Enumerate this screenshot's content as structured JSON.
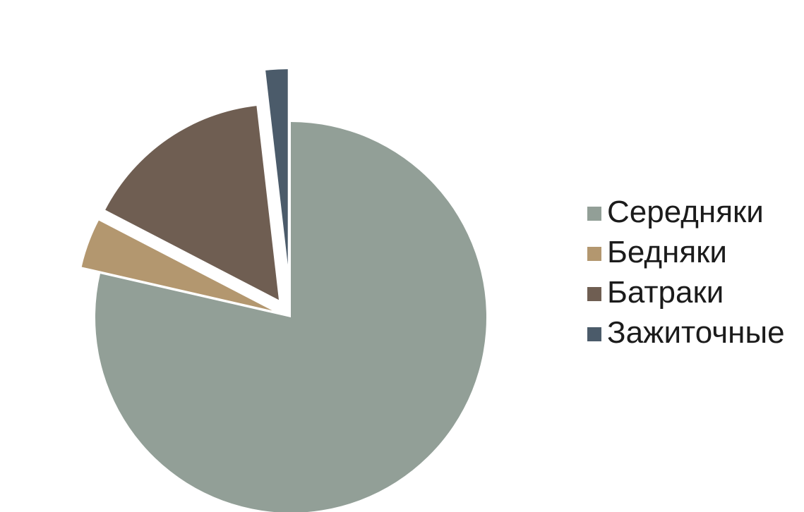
{
  "chart_data": {
    "type": "pie",
    "title": "",
    "exploded": true,
    "legend_position": "right",
    "categories": [
      "Середняки",
      "Бедняки",
      "Батраки",
      "Зажиточные"
    ],
    "values": [
      77.8,
      4.0,
      15.4,
      1.8
    ],
    "colors": [
      "#929f97",
      "#b3976f",
      "#6f5e52",
      "#4b5b6a"
    ]
  },
  "legend": {
    "items": [
      {
        "label": "Середняки",
        "color": "#929f97"
      },
      {
        "label": "Бедняки",
        "color": "#b3976f"
      },
      {
        "label": "Батраки",
        "color": "#6f5e52"
      },
      {
        "label": "Зажиточные",
        "color": "#4b5b6a"
      }
    ]
  }
}
